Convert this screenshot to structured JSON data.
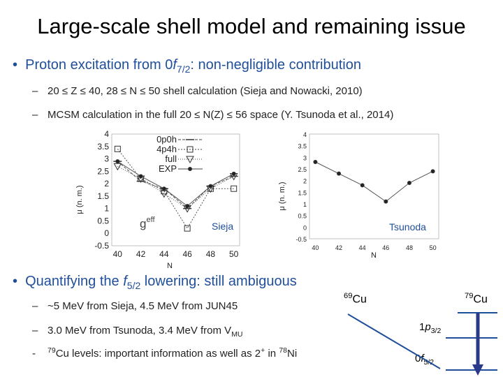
{
  "title": "Large-scale shell model and remaining issue",
  "bullet1": {
    "text_pre": "Proton excitation from 0",
    "f": "f",
    "sub": "7/2",
    "text_post": ": non-negligible contribution"
  },
  "sub1": "20 ≤ Z ≤ 40, 28 ≤ N ≤ 50 shell calculation (Sieja and Nowacki, 2010)",
  "sub2": "MCSM calculation in the full 20 ≤ N(Z) ≤ 56 space (Y. Tsunoda et al., 2014)",
  "bullet2": {
    "text_pre": "Quantifying the ",
    "f": "f",
    "sub": "5/2",
    "text_post": " lowering: still ambiguous"
  },
  "sub3": "~5 MeV from Sieja, 4.5 MeV from JUN45",
  "sub4_pre": "3.0 MeV from Tsunoda, 3.4 MeV from V",
  "sub4_sub": "MU",
  "sub5_sup1": "79",
  "sub5_mid": "Cu levels: important information as well as 2",
  "sub5_sup2": "+",
  "sub5_in": " in ",
  "sub5_sup3": "78",
  "sub5_end": "Ni",
  "chart_left": {
    "label": "Sieja",
    "ylabel": "μ (n. m.)",
    "xlabel": "N",
    "y_ticks": [
      "4",
      "3.5",
      "3",
      "2.5",
      "2",
      "1.5",
      "1",
      "0.5",
      "0",
      "-0.5"
    ],
    "x_ticks": [
      "40",
      "42",
      "44",
      "46",
      "48",
      "50"
    ],
    "legend": [
      "0p0h",
      "4p4h",
      "full",
      "EXP"
    ],
    "geff": "g",
    "geff_sup": "eff"
  },
  "chart_right": {
    "label": "Tsunoda",
    "ylabel": "μ (n. m.)",
    "xlabel": "N",
    "y_ticks": [
      "4",
      "3.5",
      "3",
      "2.5",
      "2",
      "1.5",
      "1",
      "0.5",
      "0",
      "-0.5"
    ],
    "x_ticks": [
      "40",
      "42",
      "44",
      "46",
      "48",
      "50"
    ]
  },
  "chart_data": [
    {
      "type": "line",
      "title": "",
      "xlabel": "N",
      "ylabel": "μ (n. m.)",
      "x": [
        40,
        42,
        44,
        46,
        48,
        50
      ],
      "ylim": [
        -0.5,
        4
      ],
      "series": [
        {
          "name": "0p0h",
          "values": [
            2.9,
            2.1,
            1.8,
            1.0,
            1.9,
            2.3
          ]
        },
        {
          "name": "4p4h",
          "values": [
            3.4,
            2.2,
            1.7,
            0.2,
            1.8,
            1.8
          ]
        },
        {
          "name": "full",
          "values": [
            2.7,
            2.2,
            1.6,
            1.0,
            1.8,
            2.3
          ]
        },
        {
          "name": "EXP",
          "values": [
            2.9,
            2.3,
            1.8,
            1.1,
            1.9,
            2.4
          ]
        }
      ]
    },
    {
      "type": "line",
      "title": "",
      "xlabel": "N",
      "ylabel": "μ (n. m.)",
      "x": [
        40,
        42,
        44,
        46,
        48,
        50
      ],
      "ylim": [
        -0.5,
        4
      ],
      "series": [
        {
          "name": "",
          "values": [
            2.8,
            2.3,
            1.8,
            1.1,
            1.9,
            2.4
          ]
        }
      ]
    }
  ],
  "level_diagram": {
    "left_label_sup": "69",
    "left_label": "Cu",
    "right_label_sup": "79",
    "right_label": "Cu",
    "p_level_pre": "1",
    "p_level_p": "p",
    "p_level_sub": "3/2",
    "f_level_pre": "0",
    "f_level_f": "f",
    "f_level_sub": "5/2",
    "colors": {
      "line": "#1f4e9a",
      "arrow": "#2a3a8a"
    }
  }
}
